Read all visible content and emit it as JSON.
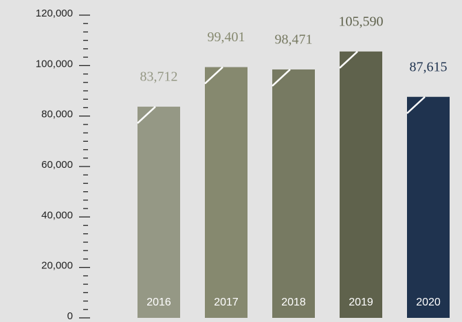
{
  "chart_data": {
    "type": "bar",
    "categories": [
      "2016",
      "2017",
      "2018",
      "2019",
      "2020"
    ],
    "values": [
      83712,
      99401,
      98471,
      105590,
      87615
    ],
    "value_labels": [
      "83,712",
      "99,401",
      "98,471",
      "105,590",
      "87,615"
    ],
    "colors": [
      "#959885",
      "#86896f",
      "#777a62",
      "#5f624c",
      "#1f334f"
    ],
    "ylim": [
      0,
      120000
    ],
    "yticks": [
      {
        "value": 0,
        "label": "0"
      },
      {
        "value": 20000,
        "label": "20,000"
      },
      {
        "value": 40000,
        "label": "40,000"
      },
      {
        "value": 60000,
        "label": "60,000"
      },
      {
        "value": 80000,
        "label": "80,000"
      },
      {
        "value": 100000,
        "label": "100,000"
      },
      {
        "value": 120000,
        "label": "120,000"
      }
    ],
    "grid": false
  }
}
